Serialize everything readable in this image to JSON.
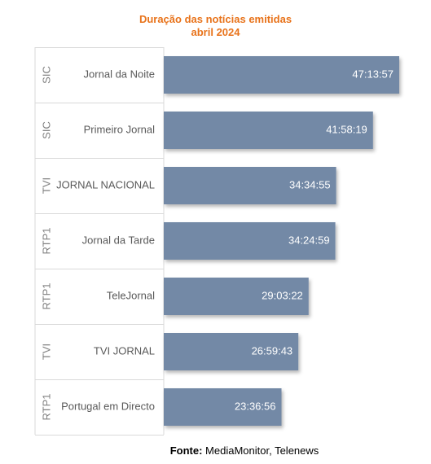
{
  "title_line1": "Duração das notícias emitidas",
  "title_line2": "abril 2024",
  "source_label": "Fonte:",
  "source_text": " MediaMonitor, Telenews",
  "colors": {
    "title": "#e8731b",
    "bar": "#7389a6",
    "bar_label": "#ffffff",
    "axis_text": "#595959",
    "group_text": "#7f7f7f",
    "grid": "#d9d9d9"
  },
  "chart_data": {
    "type": "bar",
    "orientation": "horizontal",
    "title": "Duração das notícias emitidas abril 2024",
    "groups": [
      "SIC",
      "SIC",
      "TVI",
      "RTP1",
      "RTP1",
      "TVI",
      "RTP1"
    ],
    "categories": [
      "Jornal da Noite",
      "Primeiro Jornal",
      "JORNAL NACIONAL",
      "Jornal da Tarde",
      "TeleJornal",
      "TVI JORNAL",
      "Portugal em Directo"
    ],
    "labels": [
      "47:13:57",
      "41:58:19",
      "34:34:55",
      "34:24:59",
      "29:03:22",
      "26:59:43",
      "23:36:56"
    ],
    "values": [
      47.2325,
      41.9719,
      34.5819,
      34.4164,
      29.0561,
      26.9953,
      23.6156
    ],
    "unit": "hours",
    "xlim": [
      0,
      47.2325
    ]
  }
}
